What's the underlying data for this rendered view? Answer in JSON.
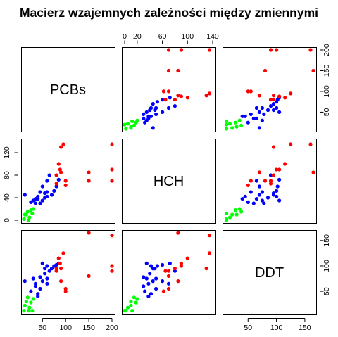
{
  "chart_data": {
    "type": "scatter",
    "subtype": "scatterplot-matrix",
    "title": "Macierz wzajemnych zależności między zmiennymi",
    "variables": [
      "PCBs",
      "HCH",
      "DDT"
    ],
    "axis_ranges": {
      "PCBs": [
        10,
        200
      ],
      "HCH": [
        0,
        140
      ],
      "DDT": [
        10,
        165
      ]
    },
    "ticks": {
      "PCBs": [
        "50",
        "100",
        "150",
        "200"
      ],
      "HCH": [
        "0",
        "20",
        "60",
        "100",
        "140"
      ],
      "HCH_left": [
        "0",
        "40",
        "80",
        "120"
      ],
      "DDT": [
        "50",
        "100",
        "150"
      ]
    },
    "grid": false,
    "legend": "none",
    "groups": [
      {
        "color": "#00ff00",
        "PCBs": [
          10,
          12,
          15,
          18,
          20,
          22,
          25,
          28,
          30
        ],
        "HCH": [
          2,
          10,
          10,
          15,
          0,
          5,
          18,
          12,
          20
        ],
        "DDT": [
          12,
          22,
          30,
          38,
          12,
          18,
          28,
          12,
          35
        ]
      },
      {
        "color": "#0000ff",
        "PCBs": [
          12,
          25,
          30,
          35,
          35,
          40,
          40,
          45,
          45,
          50,
          50,
          55,
          55,
          60,
          60,
          60,
          65,
          70,
          75,
          80,
          85
        ],
        "HCH": [
          45,
          32,
          35,
          30,
          38,
          38,
          42,
          30,
          50,
          35,
          60,
          40,
          48,
          42,
          50,
          70,
          80,
          45,
          52,
          60,
          72
        ],
        "DDT": [
          70,
          50,
          75,
          60,
          65,
          40,
          45,
          78,
          55,
          105,
          70,
          85,
          95,
          100,
          75,
          65,
          90,
          95,
          100,
          102,
          105
        ]
      },
      {
        "color": "#ff0000",
        "PCBs": [
          85,
          90,
          95,
          100,
          150,
          200,
          200,
          150,
          80,
          80,
          88,
          100,
          200,
          90
        ],
        "HCH": [
          100,
          130,
          135,
          70,
          85,
          90,
          135,
          70,
          80,
          65,
          90,
          62,
          70,
          85
        ],
        "DDT": [
          115,
          95,
          125,
          55,
          165,
          100,
          160,
          80,
          95,
          90,
          105,
          50,
          90,
          70
        ]
      }
    ]
  }
}
